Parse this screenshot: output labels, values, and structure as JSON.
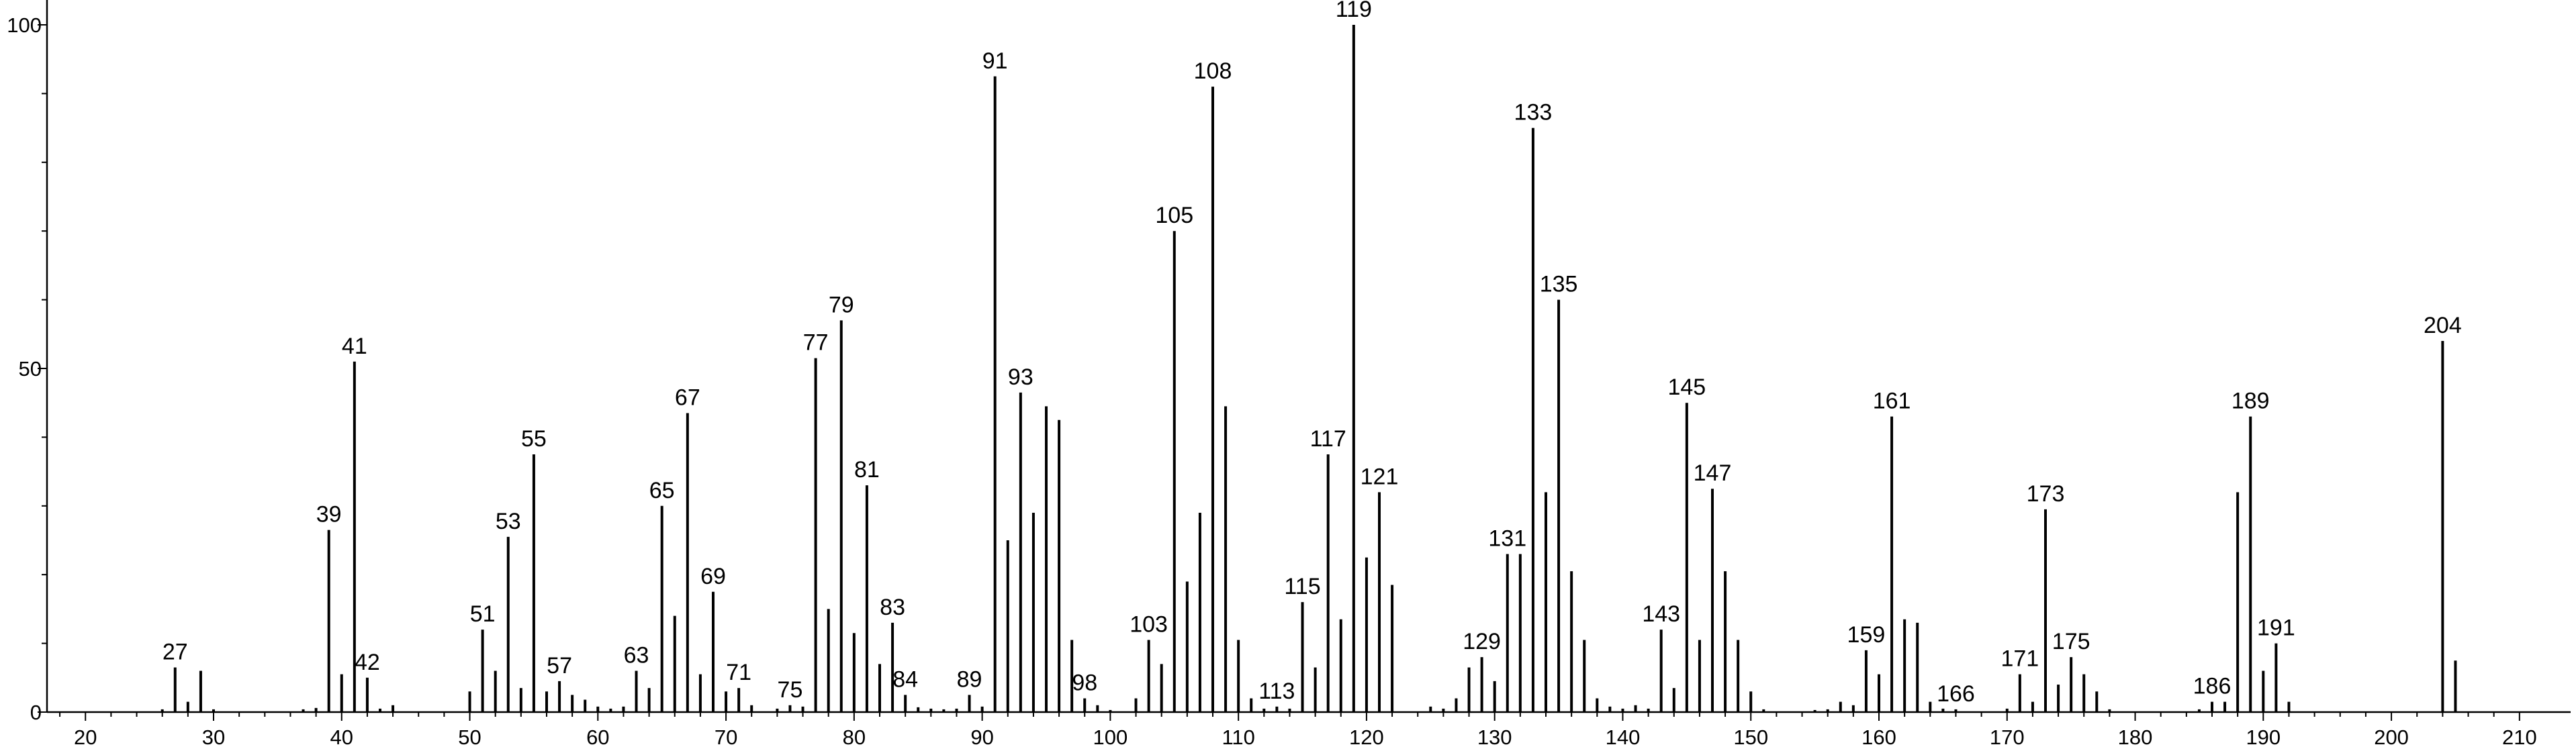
{
  "chart_data": {
    "type": "bar",
    "title": "",
    "xlabel": "",
    "ylabel": "",
    "xlim": [
      17,
      212
    ],
    "ylim": [
      0,
      100
    ],
    "grid": false,
    "x_ticks": [
      20,
      30,
      40,
      50,
      60,
      70,
      80,
      90,
      100,
      110,
      120,
      130,
      140,
      150,
      160,
      170,
      180,
      190,
      200,
      210
    ],
    "y_ticks": [
      0,
      50,
      100
    ],
    "peaks": [
      {
        "x": 26,
        "y": 0.4
      },
      {
        "x": 27,
        "y": 6.5
      },
      {
        "x": 28,
        "y": 1.5
      },
      {
        "x": 29,
        "y": 6.0
      },
      {
        "x": 30,
        "y": 0.4
      },
      {
        "x": 37,
        "y": 0.4
      },
      {
        "x": 38,
        "y": 0.6
      },
      {
        "x": 39,
        "y": 26.5
      },
      {
        "x": 40,
        "y": 5.5
      },
      {
        "x": 41,
        "y": 51.0
      },
      {
        "x": 42,
        "y": 5.0
      },
      {
        "x": 43,
        "y": 0.5
      },
      {
        "x": 44,
        "y": 1.0
      },
      {
        "x": 50,
        "y": 3.0
      },
      {
        "x": 51,
        "y": 12.0
      },
      {
        "x": 52,
        "y": 6.0
      },
      {
        "x": 53,
        "y": 25.5
      },
      {
        "x": 54,
        "y": 3.5
      },
      {
        "x": 55,
        "y": 37.5
      },
      {
        "x": 56,
        "y": 3.0
      },
      {
        "x": 57,
        "y": 4.5
      },
      {
        "x": 58,
        "y": 2.5
      },
      {
        "x": 59,
        "y": 1.8
      },
      {
        "x": 60,
        "y": 0.8
      },
      {
        "x": 61,
        "y": 0.5
      },
      {
        "x": 62,
        "y": 0.8
      },
      {
        "x": 63,
        "y": 6.0
      },
      {
        "x": 64,
        "y": 3.5
      },
      {
        "x": 65,
        "y": 30.0
      },
      {
        "x": 66,
        "y": 14.0
      },
      {
        "x": 67,
        "y": 43.5
      },
      {
        "x": 68,
        "y": 5.5
      },
      {
        "x": 69,
        "y": 17.5
      },
      {
        "x": 70,
        "y": 3.0
      },
      {
        "x": 71,
        "y": 3.5
      },
      {
        "x": 72,
        "y": 1.0
      },
      {
        "x": 74,
        "y": 0.5
      },
      {
        "x": 75,
        "y": 1.0
      },
      {
        "x": 76,
        "y": 0.8
      },
      {
        "x": 77,
        "y": 51.5
      },
      {
        "x": 78,
        "y": 15.0
      },
      {
        "x": 79,
        "y": 57.0
      },
      {
        "x": 80,
        "y": 11.5
      },
      {
        "x": 81,
        "y": 33.0
      },
      {
        "x": 82,
        "y": 7.0
      },
      {
        "x": 83,
        "y": 13.0
      },
      {
        "x": 84,
        "y": 2.5
      },
      {
        "x": 85,
        "y": 0.7
      },
      {
        "x": 86,
        "y": 0.5
      },
      {
        "x": 87,
        "y": 0.4
      },
      {
        "x": 88,
        "y": 0.5
      },
      {
        "x": 89,
        "y": 2.5
      },
      {
        "x": 90,
        "y": 0.8
      },
      {
        "x": 91,
        "y": 92.5
      },
      {
        "x": 92,
        "y": 25.0
      },
      {
        "x": 93,
        "y": 46.5
      },
      {
        "x": 94,
        "y": 29.0
      },
      {
        "x": 95,
        "y": 44.5
      },
      {
        "x": 96,
        "y": 42.5
      },
      {
        "x": 97,
        "y": 10.5
      },
      {
        "x": 98,
        "y": 2.0
      },
      {
        "x": 99,
        "y": 1.0
      },
      {
        "x": 100,
        "y": 0.3
      },
      {
        "x": 102,
        "y": 2.0
      },
      {
        "x": 103,
        "y": 10.5
      },
      {
        "x": 104,
        "y": 7.0
      },
      {
        "x": 105,
        "y": 70.0
      },
      {
        "x": 106,
        "y": 19.0
      },
      {
        "x": 107,
        "y": 29.0
      },
      {
        "x": 108,
        "y": 91.0
      },
      {
        "x": 109,
        "y": 44.5
      },
      {
        "x": 110,
        "y": 10.5
      },
      {
        "x": 111,
        "y": 2.0
      },
      {
        "x": 112,
        "y": 0.5
      },
      {
        "x": 113,
        "y": 0.8
      },
      {
        "x": 114,
        "y": 0.5
      },
      {
        "x": 115,
        "y": 16.0
      },
      {
        "x": 116,
        "y": 6.5
      },
      {
        "x": 117,
        "y": 37.5
      },
      {
        "x": 118,
        "y": 13.5
      },
      {
        "x": 119,
        "y": 100.0
      },
      {
        "x": 120,
        "y": 22.5
      },
      {
        "x": 121,
        "y": 32.0
      },
      {
        "x": 122,
        "y": 18.5
      },
      {
        "x": 125,
        "y": 0.8
      },
      {
        "x": 126,
        "y": 0.5
      },
      {
        "x": 127,
        "y": 2.0
      },
      {
        "x": 128,
        "y": 6.5
      },
      {
        "x": 129,
        "y": 8.0
      },
      {
        "x": 130,
        "y": 4.5
      },
      {
        "x": 131,
        "y": 23.0
      },
      {
        "x": 132,
        "y": 23.0
      },
      {
        "x": 133,
        "y": 85.0
      },
      {
        "x": 134,
        "y": 32.0
      },
      {
        "x": 135,
        "y": 60.0
      },
      {
        "x": 136,
        "y": 20.5
      },
      {
        "x": 137,
        "y": 10.5
      },
      {
        "x": 138,
        "y": 2.0
      },
      {
        "x": 139,
        "y": 0.8
      },
      {
        "x": 140,
        "y": 0.5
      },
      {
        "x": 141,
        "y": 1.0
      },
      {
        "x": 142,
        "y": 0.5
      },
      {
        "x": 143,
        "y": 12.0
      },
      {
        "x": 144,
        "y": 3.5
      },
      {
        "x": 145,
        "y": 45.0
      },
      {
        "x": 146,
        "y": 10.5
      },
      {
        "x": 147,
        "y": 32.5
      },
      {
        "x": 148,
        "y": 20.5
      },
      {
        "x": 149,
        "y": 10.5
      },
      {
        "x": 150,
        "y": 3.0
      },
      {
        "x": 151,
        "y": 0.4
      },
      {
        "x": 155,
        "y": 0.3
      },
      {
        "x": 156,
        "y": 0.4
      },
      {
        "x": 157,
        "y": 1.5
      },
      {
        "x": 158,
        "y": 1.0
      },
      {
        "x": 159,
        "y": 9.0
      },
      {
        "x": 160,
        "y": 5.5
      },
      {
        "x": 161,
        "y": 43.0
      },
      {
        "x": 162,
        "y": 13.5
      },
      {
        "x": 163,
        "y": 13.0
      },
      {
        "x": 164,
        "y": 1.5
      },
      {
        "x": 165,
        "y": 0.5
      },
      {
        "x": 166,
        "y": 0.4
      },
      {
        "x": 170,
        "y": 0.5
      },
      {
        "x": 171,
        "y": 5.5
      },
      {
        "x": 172,
        "y": 1.5
      },
      {
        "x": 173,
        "y": 29.5
      },
      {
        "x": 174,
        "y": 4.0
      },
      {
        "x": 175,
        "y": 8.0
      },
      {
        "x": 176,
        "y": 5.5
      },
      {
        "x": 177,
        "y": 3.0
      },
      {
        "x": 178,
        "y": 0.4
      },
      {
        "x": 185,
        "y": 0.4
      },
      {
        "x": 186,
        "y": 1.5
      },
      {
        "x": 187,
        "y": 1.5
      },
      {
        "x": 188,
        "y": 32.0
      },
      {
        "x": 189,
        "y": 43.0
      },
      {
        "x": 190,
        "y": 6.0
      },
      {
        "x": 191,
        "y": 10.0
      },
      {
        "x": 192,
        "y": 1.5
      },
      {
        "x": 204,
        "y": 54.0
      },
      {
        "x": 205,
        "y": 7.5
      }
    ],
    "labels": [
      {
        "text": "27",
        "x": 27
      },
      {
        "text": "39",
        "x": 39
      },
      {
        "text": "41",
        "x": 41
      },
      {
        "text": "42",
        "x": 42
      },
      {
        "text": "51",
        "x": 51
      },
      {
        "text": "53",
        "x": 53
      },
      {
        "text": "55",
        "x": 55
      },
      {
        "text": "57",
        "x": 57
      },
      {
        "text": "63",
        "x": 63
      },
      {
        "text": "65",
        "x": 65
      },
      {
        "text": "67",
        "x": 67
      },
      {
        "text": "69",
        "x": 69
      },
      {
        "text": "71",
        "x": 71
      },
      {
        "text": "75",
        "x": 75
      },
      {
        "text": "77",
        "x": 77
      },
      {
        "text": "79",
        "x": 79
      },
      {
        "text": "81",
        "x": 81
      },
      {
        "text": "83",
        "x": 83
      },
      {
        "text": "84",
        "x": 84
      },
      {
        "text": "89",
        "x": 89
      },
      {
        "text": "91",
        "x": 91
      },
      {
        "text": "93",
        "x": 93
      },
      {
        "text": "98",
        "x": 98
      },
      {
        "text": "103",
        "x": 103
      },
      {
        "text": "105",
        "x": 105
      },
      {
        "text": "108",
        "x": 108
      },
      {
        "text": "113",
        "x": 113
      },
      {
        "text": "115",
        "x": 115
      },
      {
        "text": "117",
        "x": 117
      },
      {
        "text": "119",
        "x": 119
      },
      {
        "text": "121",
        "x": 121
      },
      {
        "text": "129",
        "x": 129
      },
      {
        "text": "131",
        "x": 131
      },
      {
        "text": "133",
        "x": 133
      },
      {
        "text": "135",
        "x": 135
      },
      {
        "text": "143",
        "x": 143
      },
      {
        "text": "145",
        "x": 145
      },
      {
        "text": "147",
        "x": 147
      },
      {
        "text": "159",
        "x": 159
      },
      {
        "text": "161",
        "x": 161
      },
      {
        "text": "166",
        "x": 166
      },
      {
        "text": "171",
        "x": 171
      },
      {
        "text": "173",
        "x": 173
      },
      {
        "text": "175",
        "x": 175
      },
      {
        "text": "186",
        "x": 186
      },
      {
        "text": "189",
        "x": 189
      },
      {
        "text": "191",
        "x": 191
      },
      {
        "text": "204",
        "x": 204
      }
    ]
  }
}
